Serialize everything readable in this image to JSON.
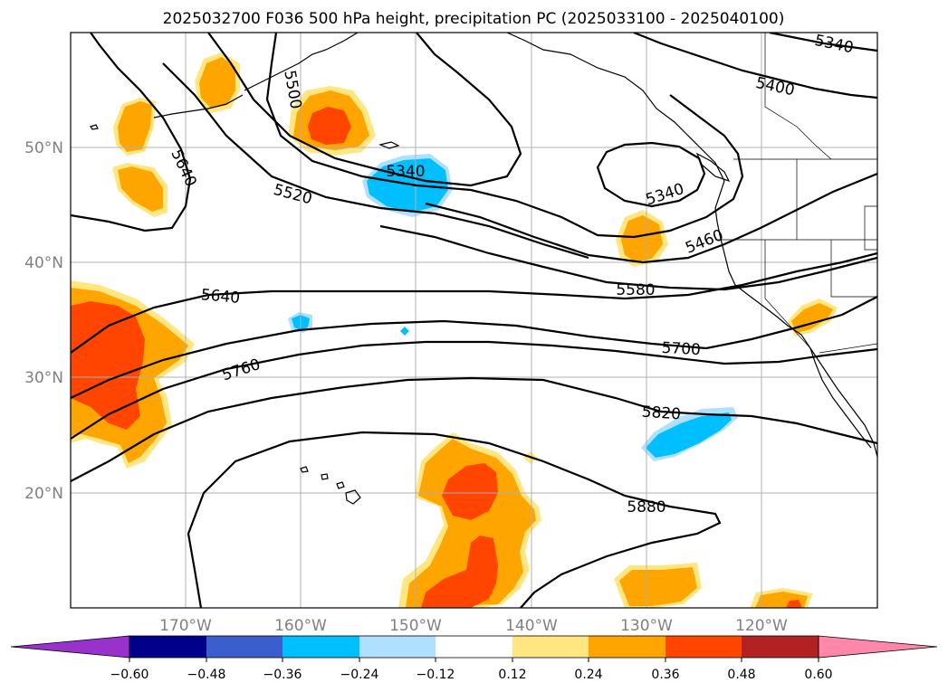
{
  "title": "2025032700 F036 500 hPa height, precipitation PC (2025033100 - 2025040100)",
  "map": {
    "lon_labels": [
      "170°W",
      "160°W",
      "150°W",
      "140°W",
      "130°W",
      "120°W"
    ],
    "lat_labels": [
      "50°N",
      "40°N",
      "30°N",
      "20°N"
    ],
    "contour_labels": [
      "5340",
      "5400",
      "5500",
      "5640",
      "5520",
      "5340",
      "5340",
      "5460",
      "5640",
      "5580",
      "5700",
      "5760",
      "5820",
      "5880"
    ],
    "gridlines": true,
    "extent": {
      "lon": [
        -180,
        -110
      ],
      "lat": [
        10,
        60
      ]
    }
  },
  "colorbar": {
    "orientation": "horizontal",
    "extend": "both",
    "ticks": [
      "−0.60",
      "−0.48",
      "−0.36",
      "−0.24",
      "−0.12",
      "0.12",
      "0.24",
      "0.36",
      "0.48",
      "0.60"
    ],
    "colors": [
      "#9932cc",
      "#00008b",
      "#3a5fcd",
      "#00bfff",
      "#b0e0ff",
      "#ffffff",
      "#ffe680",
      "#ffa500",
      "#ff4500",
      "#b22222",
      "#ff88aa"
    ]
  },
  "colors": {
    "light_blue": "#b0e0ff",
    "blue": "#00bfff",
    "yellow": "#ffe680",
    "orange": "#ffa500",
    "red": "#ff4500"
  }
}
